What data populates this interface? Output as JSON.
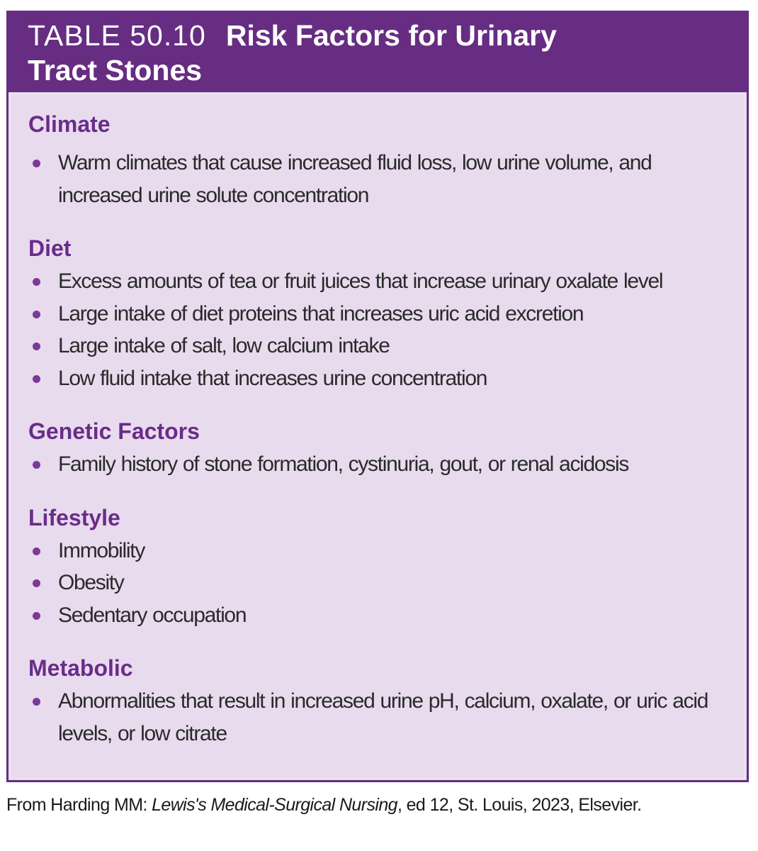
{
  "header": {
    "table_number": "TABLE 50.10",
    "title_line1": "Risk Factors for Urinary",
    "title_line2": "Tract Stones"
  },
  "sections": [
    {
      "heading": "Climate",
      "items": [
        "Warm climates that cause increased fluid loss, low urine volume, and increased urine solute concentration"
      ]
    },
    {
      "heading": "Diet",
      "items": [
        "Excess amounts of tea or fruit juices that increase urinary oxalate level",
        "Large intake of diet proteins that increases uric acid excretion",
        "Large intake of salt, low calcium intake",
        "Low fluid intake that increases urine concentration"
      ]
    },
    {
      "heading": "Genetic Factors",
      "items": [
        "Family history of stone formation, cystinuria, gout, or renal acidosis"
      ]
    },
    {
      "heading": "Lifestyle",
      "items": [
        "Immobility",
        "Obesity",
        "Sedentary occupation"
      ]
    },
    {
      "heading": "Metabolic",
      "items": [
        "Abnormalities that result in increased urine pH, calcium, oxalate, or uric acid levels, or low citrate"
      ]
    }
  ],
  "footer": {
    "prefix": "From Harding MM: ",
    "book": "Lewis's Medical-Surgical Nursing",
    "suffix": ", ed 12, St. Louis, 2023, Elsevier."
  },
  "colors": {
    "header": "#662d82",
    "body": "#e8dbee",
    "heading": "#6a2c8a"
  }
}
